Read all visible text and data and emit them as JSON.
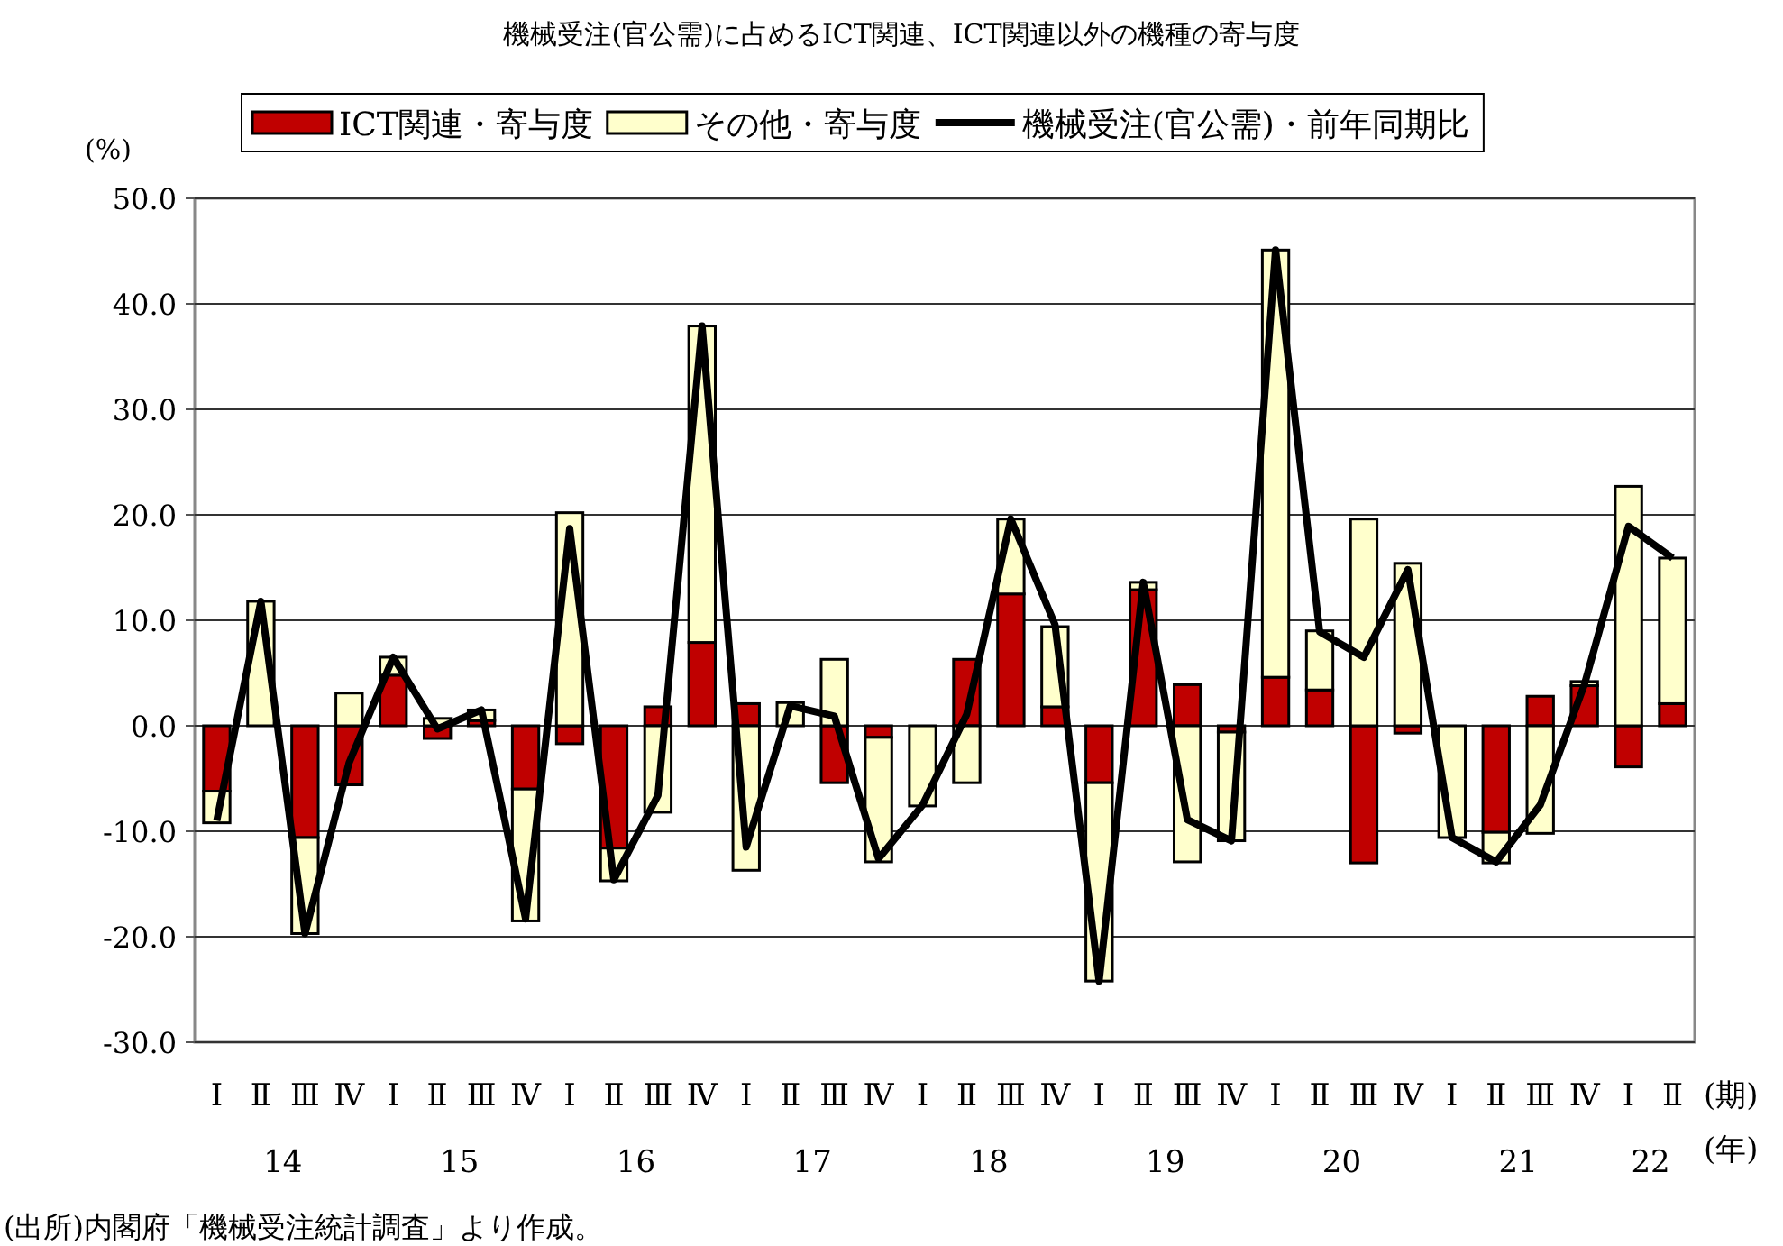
{
  "chart_data": {
    "type": "bar",
    "stacked": true,
    "title": "機械受注(官公需)に占めるICT関連、ICT関連以外の機種の寄与度",
    "ylabel": "(%)",
    "xlabel": "(期)\n(年)",
    "categories": [
      "Ⅰ",
      "Ⅱ",
      "Ⅲ",
      "Ⅳ",
      "Ⅰ",
      "Ⅱ",
      "Ⅲ",
      "Ⅳ",
      "Ⅰ",
      "Ⅱ",
      "Ⅲ",
      "Ⅳ",
      "Ⅰ",
      "Ⅱ",
      "Ⅲ",
      "Ⅳ",
      "Ⅰ",
      "Ⅱ",
      "Ⅲ",
      "Ⅳ",
      "Ⅰ",
      "Ⅱ",
      "Ⅲ",
      "Ⅳ",
      "Ⅰ",
      "Ⅱ",
      "Ⅲ",
      "Ⅳ",
      "Ⅰ",
      "Ⅱ",
      "Ⅲ",
      "Ⅳ",
      "Ⅰ",
      "Ⅱ"
    ],
    "series": [
      {
        "name": "ICT関連・寄与度",
        "color": "#c00000",
        "values": [
          -6.2,
          0.0,
          -10.6,
          -5.6,
          4.8,
          -1.2,
          0.5,
          -6.0,
          -1.7,
          -11.6,
          1.8,
          7.9,
          2.1,
          null,
          -5.4,
          -1.1,
          null,
          6.3,
          12.5,
          1.8,
          -5.4,
          12.9,
          3.9,
          -0.6,
          4.6,
          3.4,
          -13.0,
          -0.7,
          null,
          -10.1,
          2.8,
          3.8,
          -3.9,
          2.1
        ]
      },
      {
        "name": "その他・寄与度",
        "color": "#ffffcc",
        "values": [
          -3.0,
          11.8,
          -9.1,
          3.1,
          1.7,
          0.7,
          1.0,
          -12.5,
          20.2,
          -3.1,
          -8.2,
          30.0,
          -13.7,
          2.2,
          6.3,
          -11.8,
          -7.6,
          -5.4,
          7.1,
          7.6,
          -18.8,
          0.7,
          -12.9,
          -10.3,
          40.5,
          5.6,
          19.6,
          15.4,
          -10.6,
          -2.9,
          -10.2,
          0.4,
          22.7,
          13.8
        ]
      },
      {
        "name": "機械受注(官公需)・前年同期比",
        "type": "line",
        "color": "#000000",
        "values": [
          -9.0,
          11.8,
          -19.7,
          -3.5,
          6.5,
          -0.3,
          1.5,
          -18.3,
          18.7,
          -14.6,
          -6.6,
          37.9,
          -11.5,
          1.9,
          0.9,
          -12.6,
          -7.5,
          1.1,
          19.6,
          9.6,
          -24.2,
          13.6,
          -8.9,
          -10.9,
          45.1,
          8.9,
          6.5,
          14.8,
          -10.6,
          -12.9,
          -7.5,
          3.9,
          18.9,
          15.9
        ]
      }
    ],
    "ylim": [
      -30,
      50
    ],
    "yticks": [
      {
        "value": -30,
        "label": "-30.0"
      },
      {
        "value": -20,
        "label": "-20.0"
      },
      {
        "value": -10,
        "label": "-10.0"
      },
      {
        "value": 0,
        "label": "0.0"
      },
      {
        "value": 10,
        "label": "10.0"
      },
      {
        "value": 20,
        "label": "20.0"
      },
      {
        "value": 30,
        "label": "30.0"
      },
      {
        "value": 40,
        "label": "40.0"
      },
      {
        "value": 50,
        "label": "50.0"
      }
    ],
    "grid": "y",
    "legend": "top",
    "line_style": "solid",
    "marker": "none",
    "annotations": [
      "14",
      "15",
      "16",
      "17",
      "18",
      "19",
      "20",
      "21",
      "22",
      "(出所)内閣府「機械受注統計調査」より作成。"
    ]
  }
}
